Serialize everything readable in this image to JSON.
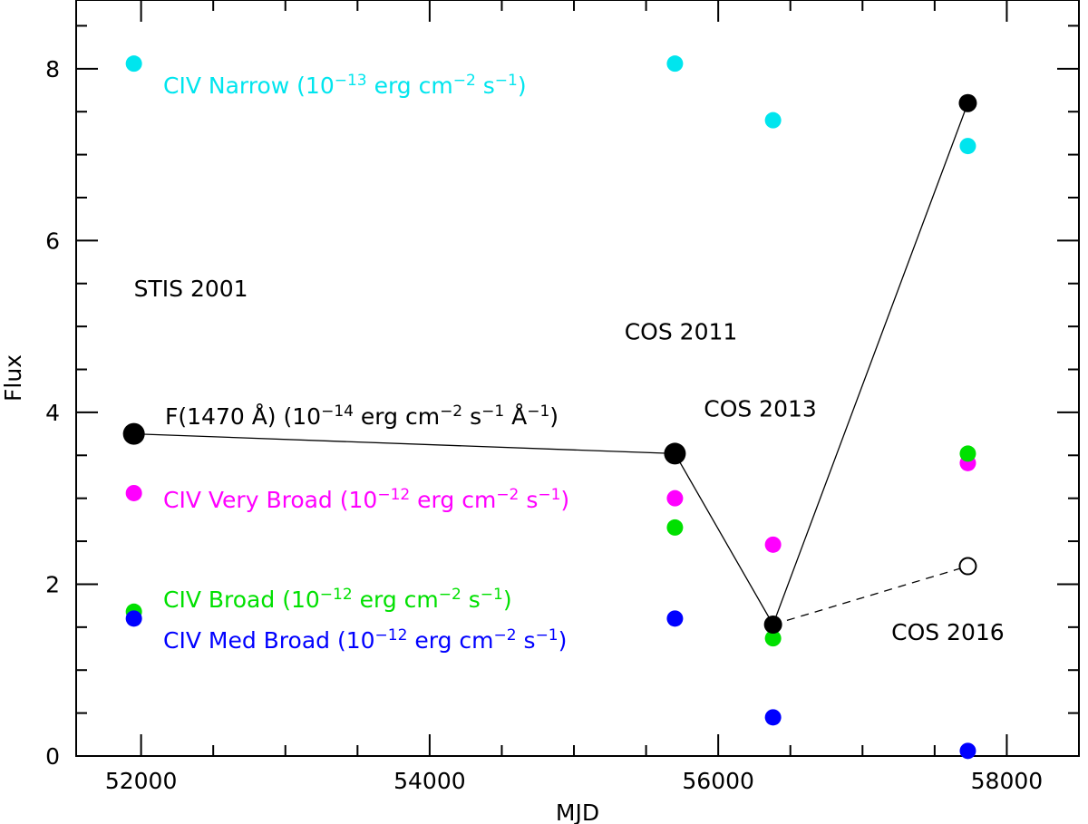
{
  "chart_data": {
    "type": "scatter",
    "xlabel": "MJD",
    "ylabel": "Flux",
    "xlim": [
      51550,
      58500
    ],
    "ylim": [
      0,
      8.8
    ],
    "x_ticks": [
      52000,
      54000,
      56000,
      58000
    ],
    "y_ticks": [
      0,
      2,
      4,
      6,
      8
    ],
    "x_tick_labels": [
      "52000",
      "54000",
      "56000",
      "58000"
    ],
    "y_tick_labels": [
      "0",
      "2",
      "4",
      "6",
      "8"
    ],
    "series": [
      {
        "name": "CIV Narrow",
        "color": "#00e5ee",
        "legend": {
          "name": "CIV Narrow (",
          "exp_base": "10",
          "exp": "−13",
          "units": " erg cm",
          "u1": "−2",
          "s": " s",
          "u2": "−1",
          "close": ")"
        },
        "points": [
          [
            51950,
            8.06
          ],
          [
            55700,
            8.06
          ],
          [
            56380,
            7.4
          ],
          [
            57730,
            7.1
          ]
        ]
      },
      {
        "name": "CIV Very Broad",
        "color": "#ff00ff",
        "legend": {
          "name": "CIV Very Broad (",
          "exp_base": "10",
          "exp": "−12",
          "units": " erg cm",
          "u1": "−2",
          "s": " s",
          "u2": "−1",
          "close": ")"
        },
        "points": [
          [
            51950,
            3.06
          ],
          [
            55700,
            3.0
          ],
          [
            56380,
            2.46
          ],
          [
            57730,
            3.41
          ]
        ]
      },
      {
        "name": "CIV Broad",
        "color": "#00e000",
        "legend": {
          "name": "CIV Broad (",
          "exp_base": "10",
          "exp": "−12",
          "units": " erg cm",
          "u1": "−2",
          "s": " s",
          "u2": "−1",
          "close": ")"
        },
        "points": [
          [
            51950,
            1.68
          ],
          [
            55700,
            2.66
          ],
          [
            56380,
            1.37
          ],
          [
            57730,
            3.52
          ]
        ]
      },
      {
        "name": "CIV Med Broad",
        "color": "#0000ff",
        "legend": {
          "name": "CIV Med Broad (",
          "exp_base": "10",
          "exp": "−12",
          "units": " erg cm",
          "u1": "−2",
          "s": " s",
          "u2": "−1",
          "close": ")"
        },
        "points": [
          [
            51950,
            1.6
          ],
          [
            55700,
            1.6
          ],
          [
            56380,
            0.45
          ],
          [
            57730,
            0.06
          ]
        ]
      },
      {
        "name": "F(1470 Å)",
        "color": "#000000",
        "legend": {
          "name": "F(1470 Å) (",
          "exp_base": "10",
          "exp": "−14",
          "units": " erg cm",
          "u1": "−2",
          "s": " s",
          "u2": "−1",
          "s2": " Å",
          "u3": "−1",
          "close": ")"
        },
        "points": [
          [
            51950,
            3.75
          ],
          [
            55700,
            3.52
          ],
          [
            56380,
            1.53
          ],
          [
            57730,
            7.6
          ]
        ],
        "connected": true,
        "alt_point": [
          57730,
          2.21
        ]
      }
    ],
    "annotations": [
      {
        "text": "STIS 2001",
        "x": 51950,
        "y": 5.35
      },
      {
        "text": "COS 2011",
        "x": 55350,
        "y": 4.85
      },
      {
        "text": "COS 2013",
        "x": 55900,
        "y": 3.95
      },
      {
        "text": "COS 2016",
        "x": 57200,
        "y": 1.35
      }
    ]
  }
}
